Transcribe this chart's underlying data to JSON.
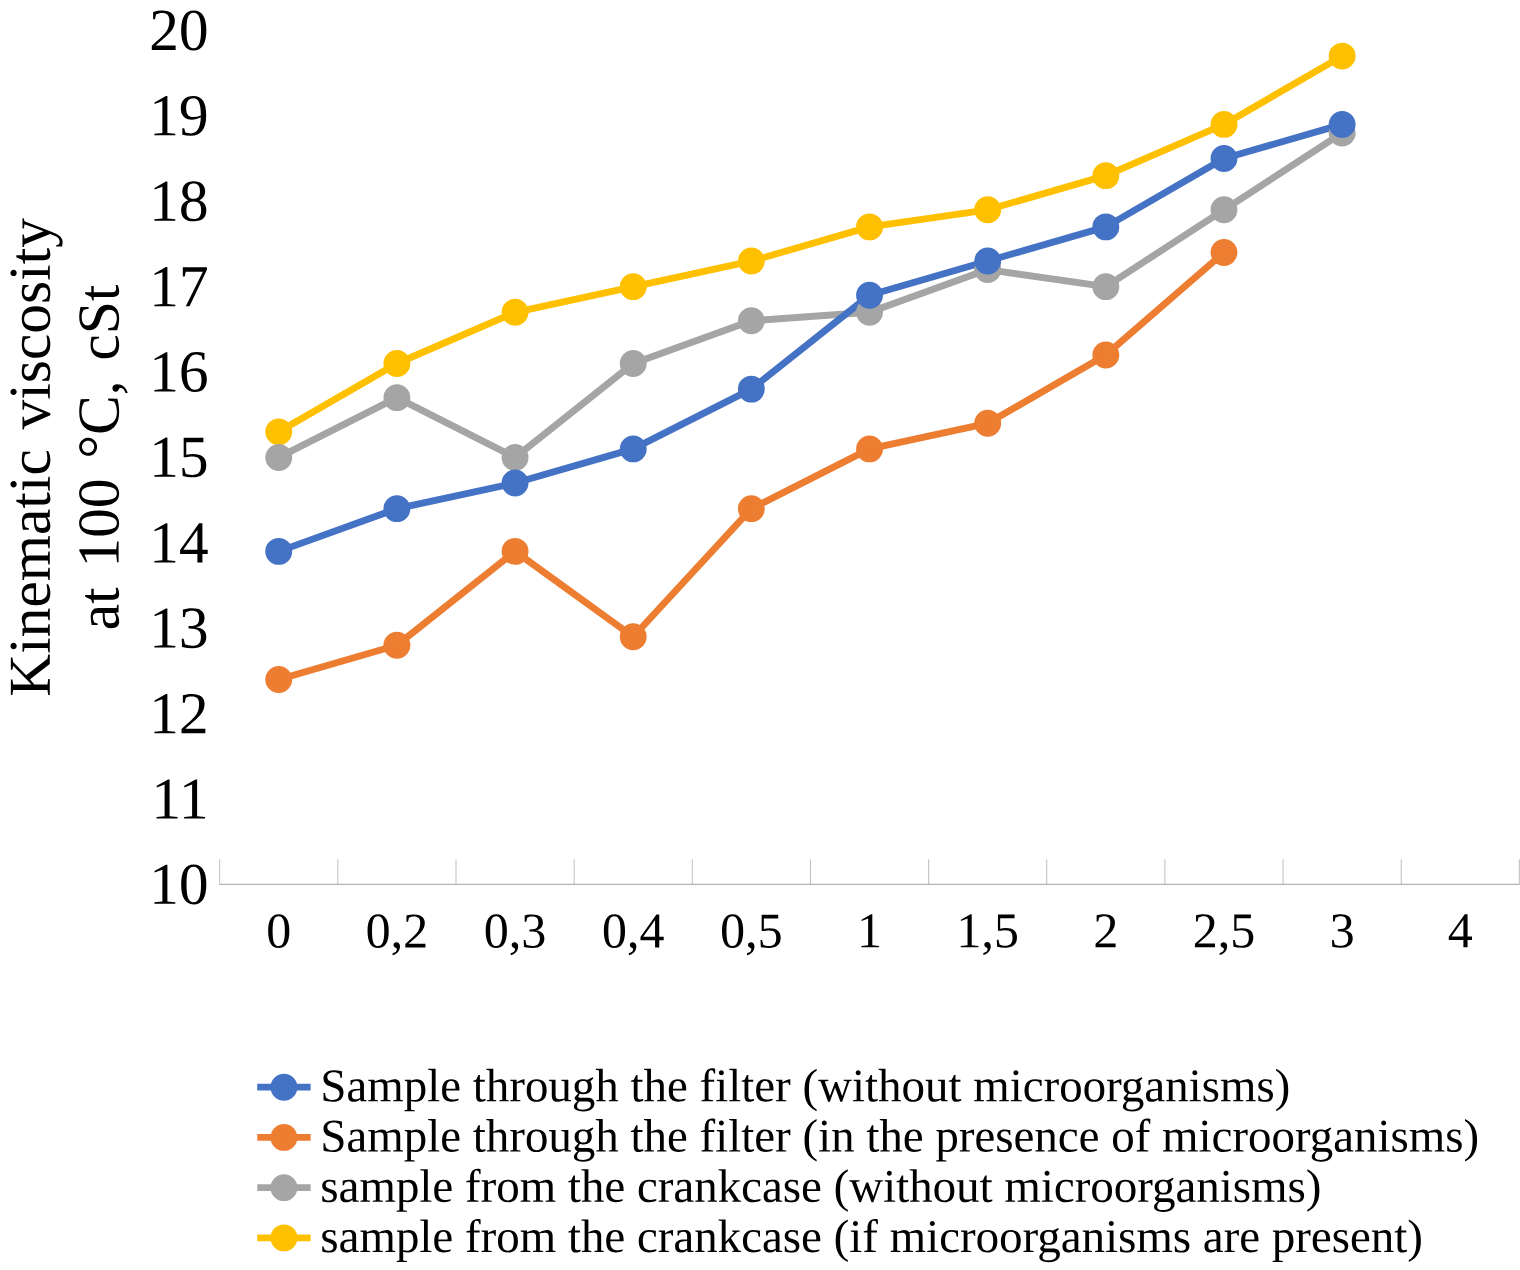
{
  "chart_data": {
    "type": "line",
    "ylabel": "Kinematic viscosity at 100 °C, cSt",
    "categories": [
      "0",
      "0,2",
      "0,3",
      "0,4",
      "0,5",
      "1",
      "1,5",
      "2",
      "2,5",
      "3",
      "4"
    ],
    "series": [
      {
        "name": "Sample through the filter (without microorganisms)",
        "color": "#4472c4",
        "values": [
          13.9,
          14.4,
          14.7,
          15.1,
          15.8,
          16.9,
          17.3,
          17.7,
          18.5,
          18.9,
          null
        ]
      },
      {
        "name": "Sample through the filter (in the presence of microorganisms)",
        "color": "#ed7d31",
        "values": [
          12.4,
          12.8,
          13.9,
          12.9,
          14.4,
          15.1,
          15.4,
          16.2,
          17.4,
          null,
          null
        ]
      },
      {
        "name": "sample from the crankcase (without microorganisms)",
        "color": "#a5a5a5",
        "values": [
          15.0,
          15.7,
          15.0,
          16.1,
          16.6,
          16.7,
          17.2,
          17.0,
          17.9,
          18.8,
          null
        ]
      },
      {
        "name": "sample from the crankcase (if microorganisms are present)",
        "color": "#ffc000",
        "values": [
          15.3,
          16.1,
          16.7,
          17.0,
          17.3,
          17.7,
          17.9,
          18.3,
          18.9,
          19.7,
          null
        ]
      }
    ],
    "ylim": [
      10,
      20
    ],
    "yticks": [
      10,
      11,
      12,
      13,
      14,
      15,
      16,
      17,
      18,
      19,
      20
    ],
    "grid": false,
    "legend": "bottom",
    "marker": "circle",
    "line_style": "solid"
  }
}
